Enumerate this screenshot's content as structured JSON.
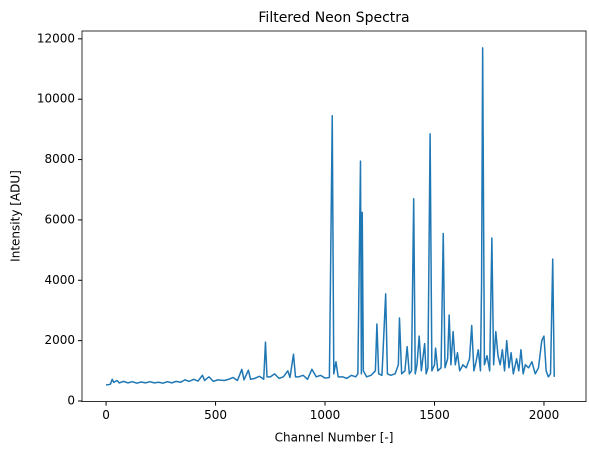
{
  "chart_data": {
    "type": "line",
    "title": "Filtered Neon Spectra",
    "xlabel": "Channel Number [-]",
    "ylabel": "Intensity [ADU]",
    "x": [
      0,
      10,
      20,
      28,
      35,
      50,
      60,
      80,
      100,
      120,
      140,
      160,
      180,
      200,
      220,
      240,
      260,
      280,
      300,
      320,
      340,
      360,
      380,
      400,
      420,
      440,
      450,
      470,
      490,
      510,
      540,
      560,
      580,
      600,
      620,
      630,
      650,
      660,
      680,
      700,
      720,
      728,
      735,
      750,
      770,
      790,
      810,
      830,
      840,
      856,
      865,
      880,
      900,
      920,
      940,
      960,
      980,
      1000,
      1020,
      1033,
      1040,
      1050,
      1060,
      1080,
      1100,
      1120,
      1140,
      1150,
      1162,
      1166,
      1170,
      1175,
      1190,
      1210,
      1230,
      1237,
      1245,
      1260,
      1277,
      1285,
      1300,
      1320,
      1335,
      1340,
      1350,
      1365,
      1375,
      1385,
      1395,
      1405,
      1412,
      1420,
      1430,
      1440,
      1455,
      1462,
      1470,
      1480,
      1488,
      1500,
      1505,
      1515,
      1530,
      1540,
      1548,
      1560,
      1567,
      1575,
      1585,
      1595,
      1605,
      1615,
      1630,
      1645,
      1660,
      1670,
      1680,
      1690,
      1700,
      1710,
      1715,
      1720,
      1728,
      1740,
      1752,
      1762,
      1770,
      1780,
      1790,
      1800,
      1810,
      1820,
      1830,
      1840,
      1850,
      1860,
      1875,
      1885,
      1895,
      1905,
      1915,
      1930,
      1945,
      1960,
      1975,
      1990,
      2000,
      2010,
      2020,
      2030,
      2040,
      2047
    ],
    "series": [
      {
        "name": "Filtered Neon Spectra",
        "color": "#1f77b4",
        "values": [
          540,
          540,
          560,
          720,
          620,
          680,
          600,
          650,
          600,
          640,
          590,
          630,
          600,
          640,
          600,
          620,
          590,
          640,
          600,
          650,
          620,
          700,
          650,
          720,
          660,
          850,
          680,
          800,
          650,
          700,
          680,
          720,
          780,
          680,
          1050,
          700,
          1020,
          720,
          750,
          820,
          720,
          1950,
          800,
          800,
          900,
          750,
          800,
          1000,
          780,
          1550,
          800,
          800,
          850,
          720,
          1050,
          800,
          850,
          760,
          780,
          9450,
          900,
          1300,
          800,
          800,
          750,
          850,
          800,
          900,
          7950,
          900,
          6250,
          1000,
          800,
          850,
          1000,
          2550,
          900,
          850,
          3550,
          900,
          850,
          900,
          1200,
          2750,
          900,
          1000,
          1800,
          900,
          1000,
          6700,
          900,
          1200,
          2150,
          1000,
          1900,
          900,
          1100,
          8850,
          1000,
          1200,
          1750,
          1000,
          1100,
          5550,
          1100,
          1400,
          2850,
          1200,
          2300,
          1200,
          1600,
          1000,
          1200,
          1100,
          1400,
          2500,
          1000,
          1300,
          1700,
          1000,
          3900,
          11700,
          1200,
          1500,
          1000,
          5400,
          1200,
          2300,
          1500,
          1200,
          1700,
          1000,
          2000,
          1100,
          1600,
          900,
          1400,
          1000,
          1700,
          900,
          1200,
          1100,
          1300,
          900,
          1100,
          2000,
          2150,
          1000,
          800,
          900,
          4700,
          800
        ]
      }
    ],
    "xlim": [
      -110,
      2192
    ],
    "xticks": [
      0,
      500,
      1000,
      1500,
      2000
    ],
    "ylim": [
      -20,
      12260
    ],
    "yticks": [
      0,
      2000,
      4000,
      6000,
      8000,
      10000,
      12000
    ]
  }
}
